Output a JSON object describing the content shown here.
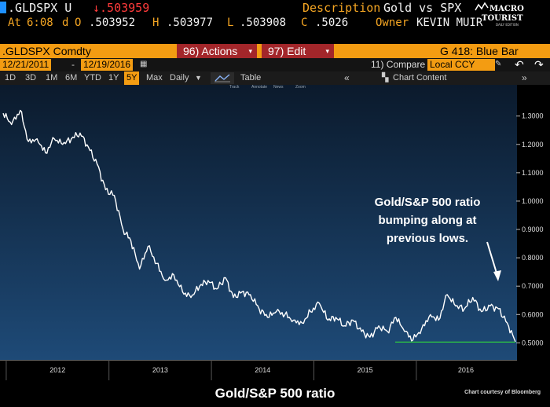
{
  "header": {
    "ticker": ".GLDSPX U",
    "last_price": "↓.503959",
    "description_label": "Description",
    "description_value": "Gold vs SPX",
    "at_label": "At",
    "time": "6:08",
    "d_label": "d",
    "o_label": "O",
    "open": ".503952",
    "h_label": "H",
    "high": ".503977",
    "l_label": "L",
    "low": ".503908",
    "c_label": "C",
    "close": ".5026",
    "owner_label": "Owner",
    "owner_value": "KEVIN MUIR"
  },
  "logo": {
    "line1": "MACRO",
    "line2": "TOURIST",
    "line3": "DAILY EDITION"
  },
  "toolbar": {
    "security": ".GLDSPX Comdty",
    "actions": "96) Actions",
    "edit": "97) Edit",
    "chart_name": "G 418: Blue Bar"
  },
  "range": {
    "start": "12/21/2011",
    "separator": "-",
    "end": "12/19/2016",
    "compare": "11) Compare",
    "currency": "Local CCY"
  },
  "tabs": {
    "items": [
      "1D",
      "3D",
      "1M",
      "6M",
      "YTD",
      "1Y",
      "5Y",
      "Max"
    ],
    "selected": "5Y",
    "frequency": "Daily",
    "table": "Table",
    "chart_content": "Chart Content"
  },
  "mini_toolbar": [
    "Track",
    "Annotate",
    "News",
    "Zoom"
  ],
  "annotation": {
    "line1": "Gold/S&P 500 ratio",
    "line2": "bumping along at",
    "line3": "previous lows."
  },
  "caption": "Gold/S&P 500 ratio",
  "credit": "Chart courtesy of Bloomberg",
  "colors": {
    "plot_top": "#0b1a2c",
    "plot_bottom": "#1e4a77",
    "line": "#ffffff",
    "support": "#2ecc40",
    "header_amber": "#f39c12",
    "menu_red": "#a3262a"
  },
  "chart_data": {
    "type": "line",
    "x_start": "2011-12-21",
    "x_end": "2016-12-19",
    "xticks": [
      "2012",
      "2013",
      "2014",
      "2015",
      "2016"
    ],
    "yticks": [
      "1.3000",
      "1.2000",
      "1.1000",
      "1.0000",
      "0.9000",
      "0.8000",
      "0.7000",
      "0.6000",
      "0.5000"
    ],
    "ylim": [
      0.44,
      1.41
    ],
    "support_level": 0.5026,
    "series": [
      {
        "x": [
          "2011-12-21",
          "2012-01-20",
          "2012-02-20",
          "2012-03-20",
          "2012-04-20",
          "2012-05-20",
          "2012-06-20",
          "2012-07-20",
          "2012-08-20",
          "2012-09-20",
          "2012-10-20",
          "2012-11-20",
          "2012-12-20",
          "2013-01-20",
          "2013-02-20",
          "2013-03-20",
          "2013-04-20",
          "2013-05-20",
          "2013-06-20",
          "2013-07-20",
          "2013-08-20",
          "2013-09-20",
          "2013-10-20",
          "2013-11-20",
          "2013-12-20",
          "2014-01-20",
          "2014-02-20",
          "2014-03-20",
          "2014-04-20",
          "2014-05-20",
          "2014-06-20",
          "2014-07-20",
          "2014-08-20",
          "2014-09-20",
          "2014-10-20",
          "2014-11-20",
          "2014-12-20",
          "2015-01-20",
          "2015-02-20",
          "2015-03-20",
          "2015-04-20",
          "2015-05-20",
          "2015-06-20",
          "2015-07-20",
          "2015-08-20",
          "2015-09-20",
          "2015-10-20",
          "2015-11-20",
          "2015-12-20",
          "2016-01-20",
          "2016-02-20",
          "2016-03-20",
          "2016-04-20",
          "2016-05-20",
          "2016-06-20",
          "2016-07-20",
          "2016-08-20",
          "2016-09-20",
          "2016-10-20",
          "2016-11-20",
          "2016-12-19"
        ],
        "y": [
          1.31,
          1.27,
          1.32,
          1.21,
          1.22,
          1.17,
          1.22,
          1.2,
          1.22,
          1.24,
          1.19,
          1.13,
          1.04,
          1.02,
          0.9,
          0.86,
          0.76,
          0.84,
          0.78,
          0.72,
          0.74,
          0.68,
          0.66,
          0.7,
          0.72,
          0.69,
          0.73,
          0.66,
          0.68,
          0.67,
          0.62,
          0.59,
          0.61,
          0.6,
          0.58,
          0.57,
          0.61,
          0.64,
          0.58,
          0.59,
          0.56,
          0.58,
          0.54,
          0.52,
          0.56,
          0.54,
          0.59,
          0.54,
          0.51,
          0.55,
          0.6,
          0.58,
          0.67,
          0.63,
          0.62,
          0.66,
          0.61,
          0.63,
          0.62,
          0.57,
          0.504
        ]
      }
    ]
  }
}
